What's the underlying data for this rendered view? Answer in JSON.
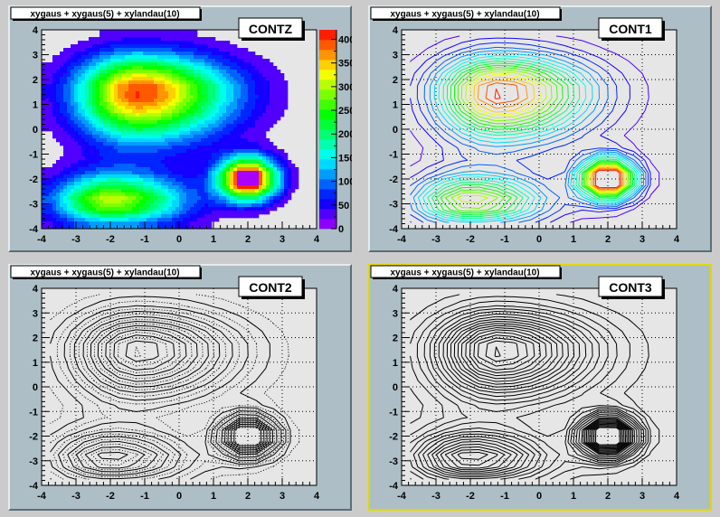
{
  "chart_data": {
    "type": "heatmap",
    "title": "xygaus + xygaus(5) + xylandau(10)",
    "xlim": [
      -4,
      4
    ],
    "ylim": [
      -4,
      4
    ],
    "zlim": [
      0,
      420
    ],
    "contour_levels": 20,
    "x_ticks": [
      "-4",
      "-3",
      "-2",
      "-1",
      "0",
      "1",
      "2",
      "3",
      "4"
    ],
    "y_ticks": [
      "-4",
      "-3",
      "-2",
      "-1",
      "0",
      "1",
      "2",
      "3",
      "4"
    ],
    "z_ticks": [
      "0",
      "50",
      "100",
      "150",
      "200",
      "250",
      "300",
      "350",
      "400"
    ],
    "x_centers": [
      -3.75,
      -3.25,
      -2.75,
      -2.25,
      -1.75,
      -1.25,
      -0.75,
      -0.25,
      0.25,
      0.75,
      1.25,
      1.75,
      2.25,
      2.75,
      3.25,
      3.75
    ],
    "y_centers": [
      3.75,
      3.25,
      2.75,
      2.25,
      1.75,
      1.25,
      0.75,
      0.25,
      -0.25,
      -0.75,
      -1.25,
      -1.75,
      -2.25,
      -2.75,
      -3.25,
      -3.75
    ],
    "z": [
      [
        3,
        8,
        14,
        22,
        30,
        33,
        32,
        29,
        24,
        18,
        13,
        9,
        5,
        3,
        2,
        1
      ],
      [
        9,
        21,
        38,
        60,
        80,
        89,
        86,
        77,
        64,
        49,
        35,
        23,
        14,
        8,
        4,
        2
      ],
      [
        20,
        44,
        82,
        128,
        169,
        188,
        182,
        164,
        135,
        104,
        74,
        49,
        30,
        17,
        9,
        4
      ],
      [
        32,
        72,
        134,
        211,
        279,
        310,
        300,
        270,
        223,
        172,
        122,
        81,
        49,
        28,
        14,
        7
      ],
      [
        42,
        92,
        173,
        272,
        358,
        398,
        386,
        346,
        286,
        221,
        157,
        104,
        63,
        36,
        18,
        9
      ],
      [
        42,
        93,
        174,
        274,
        362,
        402,
        390,
        350,
        289,
        223,
        159,
        105,
        64,
        36,
        19,
        9
      ],
      [
        36,
        80,
        151,
        237,
        313,
        347,
        337,
        302,
        250,
        193,
        137,
        91,
        55,
        31,
        16,
        8
      ],
      [
        27,
        60,
        112,
        176,
        232,
        258,
        251,
        225,
        186,
        144,
        102,
        67,
        41,
        23,
        12,
        6
      ],
      [
        17,
        38,
        72,
        113,
        149,
        166,
        161,
        144,
        119,
        92,
        65,
        43,
        26,
        15,
        8,
        4
      ],
      [
        12,
        24,
        45,
        69,
        89,
        98,
        93,
        83,
        68,
        55,
        52,
        61,
        52,
        24,
        7,
        2
      ],
      [
        14,
        26,
        43,
        60,
        69,
        71,
        65,
        54,
        43,
        46,
        104,
        204,
        199,
        88,
        18,
        2
      ],
      [
        29,
        55,
        85,
        107,
        112,
        103,
        87,
        65,
        48,
        65,
        208,
        446,
        442,
        195,
        38,
        3
      ],
      [
        61,
        114,
        171,
        211,
        216,
        194,
        157,
        114,
        77,
        81,
        215,
        448,
        447,
        197,
        38,
        3
      ],
      [
        90,
        167,
        250,
        308,
        311,
        278,
        225,
        162,
        103,
        76,
        116,
        206,
        198,
        86,
        16,
        1
      ],
      [
        76,
        142,
        214,
        264,
        267,
        238,
        192,
        138,
        88,
        53,
        42,
        49,
        42,
        18,
        3,
        0
      ],
      [
        40,
        70,
        100,
        120,
        120,
        110,
        90,
        70,
        45,
        25,
        12,
        5,
        2,
        1,
        0,
        0
      ]
    ],
    "pads": [
      {
        "label": "CONTZ",
        "draw": "filled",
        "colorbar": true,
        "grid": false,
        "line_color": "palette"
      },
      {
        "label": "CONT1",
        "draw": "lines",
        "colorbar": false,
        "grid": true,
        "line_color": "palette"
      },
      {
        "label": "CONT2",
        "draw": "lines",
        "colorbar": false,
        "grid": true,
        "line_color": "#000000",
        "line_styles": [
          "solid",
          "dotted"
        ]
      },
      {
        "label": "CONT3",
        "draw": "lines",
        "colorbar": false,
        "grid": true,
        "line_color": "#000000",
        "selected": true
      }
    ]
  },
  "colors": {
    "canvas": "#cbcbcb",
    "pad": "#adbec6",
    "frame": "#e6e6e6",
    "selected_pad_border": "#e0d800"
  }
}
